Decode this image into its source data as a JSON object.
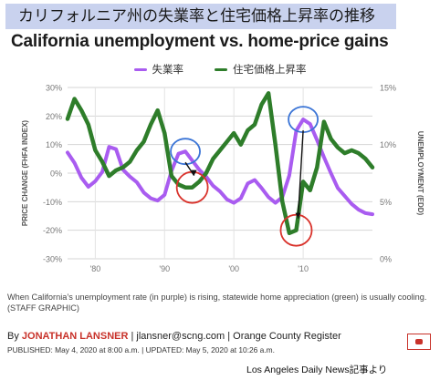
{
  "header": {
    "jp_title": "カリフォルニア州の失業率と住宅価格上昇率の推移",
    "chart_title": "California unemployment vs. home-price gains"
  },
  "chart_data": {
    "type": "line",
    "title": "California unemployment vs. home-price gains",
    "legend_placement": "top-center",
    "grid": true,
    "x_axis": {
      "ticks": [
        "'80",
        "'90",
        "'00",
        "'10"
      ],
      "range": [
        1976,
        2020
      ]
    },
    "y_left": {
      "label": "PRICE CHANGE (FHFA INDEX)",
      "ticks": [
        "30%",
        "20%",
        "10%",
        "0%",
        "-10%",
        "-20%",
        "-30%"
      ],
      "range": [
        -30,
        30
      ]
    },
    "y_right": {
      "label": "UNEMPLOYMENT (EDD)",
      "ticks": [
        "15%",
        "10%",
        "5%",
        "0%"
      ],
      "range": [
        0,
        15
      ]
    },
    "series": [
      {
        "name": "失業率",
        "color": "#a95cf0",
        "axis": "right",
        "x": [
          1976,
          1977,
          1978,
          1979,
          1980,
          1981,
          1982,
          1983,
          1984,
          1985,
          1986,
          1987,
          1988,
          1989,
          1990,
          1991,
          1992,
          1993,
          1994,
          1995,
          1996,
          1997,
          1998,
          1999,
          2000,
          2001,
          2002,
          2003,
          2004,
          2005,
          2006,
          2007,
          2008,
          2009,
          2010,
          2011,
          2012,
          2013,
          2014,
          2015,
          2016,
          2017,
          2018,
          2019,
          2020
        ],
        "values": [
          9.3,
          8.4,
          7.1,
          6.3,
          6.8,
          7.6,
          9.8,
          9.6,
          7.8,
          7.2,
          6.7,
          5.8,
          5.3,
          5.1,
          5.6,
          7.7,
          9.2,
          9.4,
          8.6,
          7.8,
          7.2,
          6.4,
          5.9,
          5.2,
          4.9,
          5.3,
          6.6,
          6.9,
          6.2,
          5.4,
          4.9,
          5.4,
          7.3,
          11.2,
          12.2,
          11.8,
          10.4,
          8.9,
          7.5,
          6.2,
          5.5,
          4.8,
          4.3,
          4.0,
          3.9
        ]
      },
      {
        "name": "住宅価格上昇率",
        "color": "#2e7d2a",
        "axis": "left",
        "x": [
          1976,
          1977,
          1978,
          1979,
          1980,
          1981,
          1982,
          1983,
          1984,
          1985,
          1986,
          1987,
          1988,
          1989,
          1990,
          1991,
          1992,
          1993,
          1994,
          1995,
          1996,
          1997,
          1998,
          1999,
          2000,
          2001,
          2002,
          2003,
          2004,
          2005,
          2006,
          2007,
          2008,
          2009,
          2010,
          2011,
          2012,
          2013,
          2014,
          2015,
          2016,
          2017,
          2018,
          2019,
          2020
        ],
        "values": [
          19,
          26,
          22,
          17,
          8,
          4,
          -1,
          1,
          2,
          4,
          8,
          11,
          17,
          22,
          14,
          -1,
          -4,
          -5,
          -5,
          -3,
          0,
          5,
          8,
          11,
          14,
          10,
          15,
          17,
          24,
          28,
          10,
          -10,
          -21,
          -20,
          -3,
          -6,
          2,
          18,
          12,
          9,
          7,
          8,
          7,
          5,
          2
        ]
      }
    ],
    "annotations": [
      {
        "shape": "blue-circle",
        "target": "unemployment peak",
        "x": 1993
      },
      {
        "shape": "red-circle",
        "target": "price low",
        "x": 1994
      },
      {
        "shape": "blue-circle",
        "target": "unemployment peak",
        "x": 2010
      },
      {
        "shape": "red-circle",
        "target": "price low",
        "x": 2009
      }
    ]
  },
  "caption": "When California’s unemployment rate (in purple) is rising, statewide home appreciation (green) is usually cooling. (STAFF GRAPHIC)",
  "byline": {
    "prefix": "By ",
    "author": "JONATHAN LANSNER",
    "rest": " | jlansner@scng.com | Orange County Register"
  },
  "dates": "PUBLISHED: May 4, 2020 at 8:00 a.m. | UPDATED: May 5, 2020 at 10:26 a.m.",
  "source_note": "Los Angeles Daily News記事より",
  "colors": {
    "accent": "#c8322a",
    "banner": "#c9d2ee"
  },
  "icons": {
    "comment": "comment-icon"
  }
}
